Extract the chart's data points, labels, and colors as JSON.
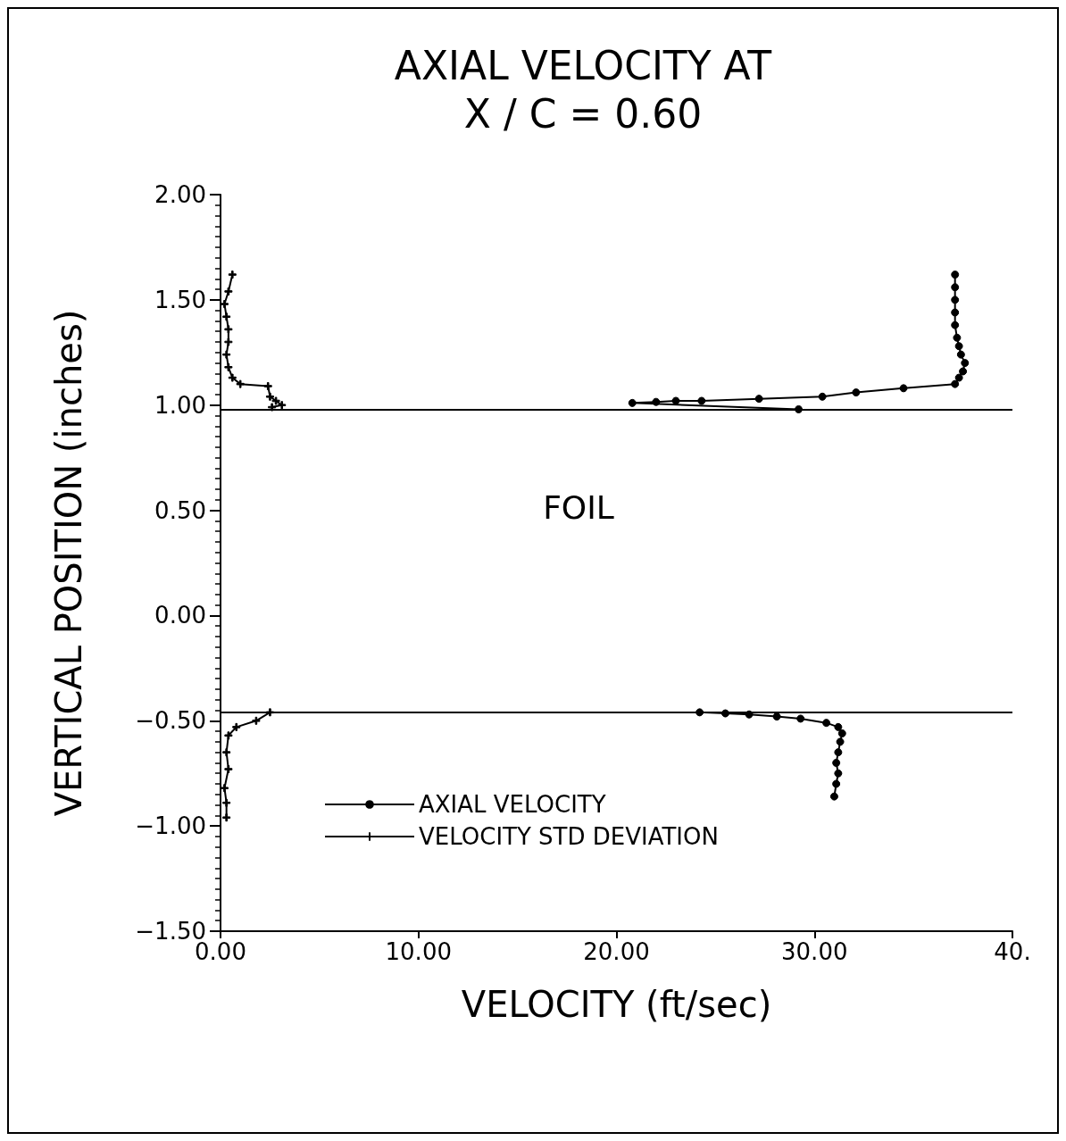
{
  "chart_data": {
    "type": "line",
    "title": "AXIAL VELOCITY AT",
    "subtitle": "X / C = 0.60",
    "xlabel": "VELOCITY (ft/sec)",
    "ylabel": "VERTICAL POSITION (inches)",
    "xlim": [
      0,
      40
    ],
    "xticks": [
      {
        "value": 0,
        "label": "0.00"
      },
      {
        "value": 10,
        "label": "10.00"
      },
      {
        "value": 20,
        "label": "20.00"
      },
      {
        "value": 30,
        "label": "30.00"
      },
      {
        "value": 40,
        "label": "40."
      }
    ],
    "ylim": [
      -1.5,
      2
    ],
    "yticks": [
      {
        "value": -1.5,
        "label": "−1.50"
      },
      {
        "value": -1,
        "label": "−1.00"
      },
      {
        "value": -0.5,
        "label": "−0.50"
      },
      {
        "value": 0,
        "label": "0.00"
      },
      {
        "value": 0.5,
        "label": "0.50"
      },
      {
        "value": 1,
        "label": "1.00"
      },
      {
        "value": 1.5,
        "label": "1.50"
      },
      {
        "value": 2,
        "label": "2.00"
      }
    ],
    "grid": false,
    "legend": "bottom left",
    "line_style": "solid",
    "annotations": [
      "FOIL"
    ],
    "ref_lines": [
      {
        "axis": "y",
        "value": 0.98,
        "color": "#000000"
      },
      {
        "axis": "y",
        "value": -0.46,
        "color": "#000000"
      }
    ],
    "series": [
      {
        "name": "AXIAL VELOCITY",
        "color": "#000000",
        "marker": "circle",
        "x": [
          29.2,
          20.8,
          22,
          23,
          24.3,
          27.2,
          30.4,
          32.1,
          34.5,
          37.1,
          37.3,
          37.5,
          37.6,
          37.4,
          37.3,
          37.2,
          37.1,
          37.1,
          37.1,
          37.1,
          37.1,
          null,
          24.2,
          25.5,
          26.7,
          28.1,
          29.3,
          30.6,
          31.2,
          31.4,
          31.3,
          31.2,
          31.1,
          31.2,
          31.1,
          31
        ],
        "values": [
          0.98,
          1.01,
          1.015,
          1.02,
          1.02,
          1.03,
          1.04,
          1.06,
          1.08,
          1.1,
          1.13,
          1.16,
          1.2,
          1.24,
          1.28,
          1.32,
          1.38,
          1.44,
          1.5,
          1.56,
          1.62,
          null,
          -0.46,
          -0.465,
          -0.47,
          -0.48,
          -0.49,
          -0.51,
          -0.53,
          -0.56,
          -0.6,
          -0.65,
          -0.7,
          -0.75,
          -0.8,
          -0.86
        ]
      },
      {
        "name": "VELOCITY STD DEVIATION",
        "color": "#000000",
        "marker": "cross",
        "x": [
          2.6,
          3.1,
          2.8,
          2.5,
          2.4,
          1,
          0.6,
          0.4,
          0.3,
          0.4,
          0.4,
          0.3,
          0.2,
          0.4,
          0.6,
          null,
          2.5,
          1.8,
          0.8,
          0.4,
          0.3,
          0.4,
          0.2,
          0.3,
          0.3
        ],
        "values": [
          0.99,
          1,
          1.02,
          1.04,
          1.09,
          1.1,
          1.13,
          1.18,
          1.24,
          1.3,
          1.36,
          1.42,
          1.48,
          1.54,
          1.62,
          null,
          -0.46,
          -0.5,
          -0.53,
          -0.57,
          -0.65,
          -0.73,
          -0.82,
          -0.89,
          -0.96
        ]
      }
    ]
  }
}
